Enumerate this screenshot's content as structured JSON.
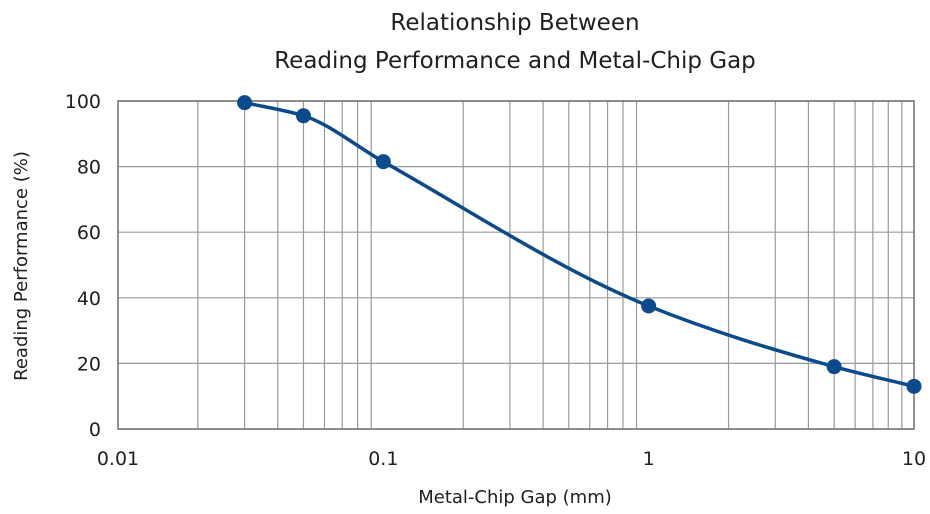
{
  "chart_data": {
    "type": "line",
    "title_lines": [
      "Relationship Between",
      "Reading Performance and Metal-Chip Gap"
    ],
    "xlabel": "Metal-Chip Gap (mm)",
    "ylabel": "Reading Performance (%)",
    "x_scale": "log",
    "xlim": [
      0.01,
      10
    ],
    "ylim": [
      0,
      100
    ],
    "x_ticks": [
      0.01,
      0.1,
      1,
      10
    ],
    "x_tick_labels": [
      "0.01",
      "0.1",
      "1",
      "10"
    ],
    "y_ticks": [
      0,
      20,
      40,
      60,
      80,
      100
    ],
    "y_tick_labels": [
      "0",
      "20",
      "40",
      "60",
      "80",
      "100"
    ],
    "grid": true,
    "series": [
      {
        "x": [
          0.03,
          0.05,
          0.1,
          1,
          5,
          10
        ],
        "y": [
          99.5,
          95.5,
          81.5,
          37.5,
          19,
          13
        ]
      }
    ],
    "colors": {
      "line": "#0b4a8b",
      "grid": "#9a9a9a",
      "frame": "#6f6f6f"
    }
  }
}
